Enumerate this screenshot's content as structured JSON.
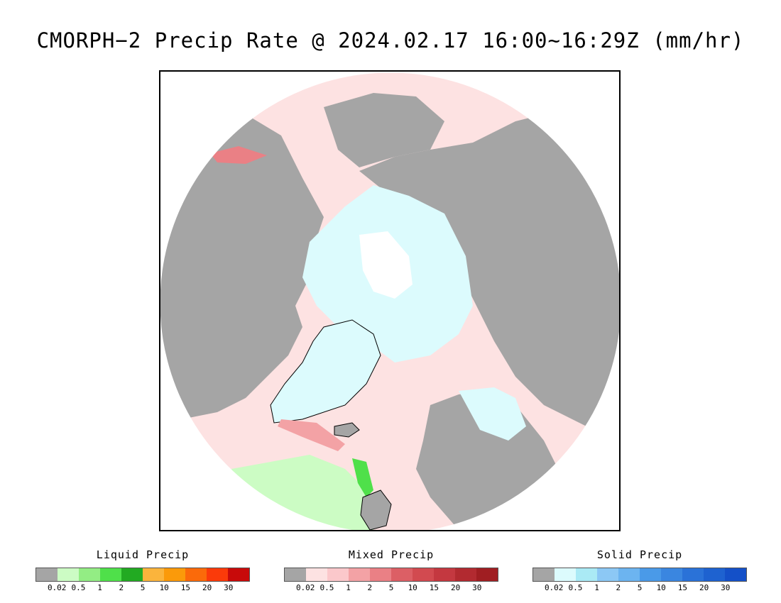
{
  "title": "CMORPH−2 Precip Rate @ 2024.02.17 16:00~16:29Z (mm/hr)",
  "colors": {
    "ocean_mixed_light": "#fde2e2",
    "land_none": "#a5a5a5",
    "ice_solid_light": "#dcfbfd",
    "white": "#ffffff",
    "coastline": "#000000"
  },
  "legends": [
    {
      "title": "Liquid Precip",
      "colors": [
        "#a5a5a5",
        "#ccfcc4",
        "#93ed84",
        "#4fe04a",
        "#22aa22",
        "#fbb43c",
        "#fb9a0a",
        "#fb6a0a",
        "#fb3a0a",
        "#c80a0a"
      ],
      "ticks": [
        "0.02",
        "0.5",
        "1",
        "2",
        "5",
        "10",
        "15",
        "20",
        "30"
      ]
    },
    {
      "title": "Mixed Precip",
      "colors": [
        "#a5a5a5",
        "#fde2e2",
        "#fbc8cb",
        "#f3a2a5",
        "#ea8085",
        "#dc5f65",
        "#d24a50",
        "#c43840",
        "#b22a30",
        "#a01e22"
      ],
      "ticks": [
        "0.02",
        "0.5",
        "1",
        "2",
        "5",
        "10",
        "15",
        "20",
        "30"
      ]
    },
    {
      "title": "Solid Precip",
      "colors": [
        "#a5a5a5",
        "#dcfbfd",
        "#aaeaf5",
        "#8cc8f5",
        "#6cb4f0",
        "#4a9ae8",
        "#3a86e0",
        "#2a72d8",
        "#1e62d0",
        "#1450c8"
      ],
      "ticks": [
        "0.02",
        "0.5",
        "1",
        "2",
        "5",
        "10",
        "15",
        "20",
        "30"
      ]
    }
  ]
}
